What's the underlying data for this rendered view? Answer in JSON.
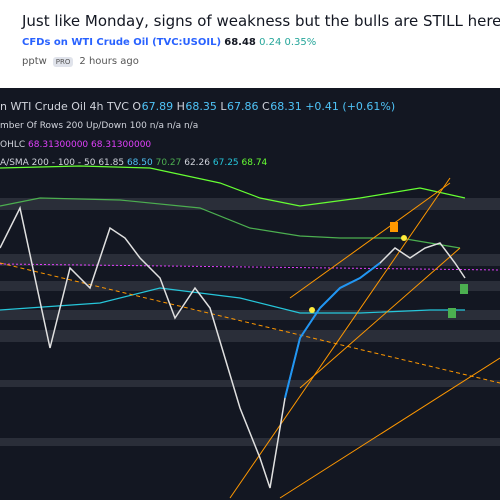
{
  "header": {
    "title": "Just like Monday, signs of weakness but the bulls are STILL here",
    "symbol": "CFDs on WTI Crude Oil (TVC:USOIL)",
    "price": "68.48",
    "change": "0.24",
    "change_pct": "0.35%",
    "author": "pptw",
    "badge": "PRO",
    "time": "2 hours ago"
  },
  "chart": {
    "name": "n WTI Crude Oil",
    "interval": "4h",
    "exchange": "TVC",
    "ohlc": [
      {
        "k": "O",
        "v": "67.89"
      },
      {
        "k": "H",
        "v": "68.35"
      },
      {
        "k": "L",
        "v": "67.86"
      },
      {
        "k": "C",
        "v": "68.31"
      }
    ],
    "delta": "+0.41 (+0.61%)",
    "line2": "mber Of Rows 200 Up/Down 100",
    "line2_na": "n/a n/a n/a",
    "line3": "OHLC",
    "line3_values": [
      "68.31300000",
      "68.31300000"
    ],
    "line4": "A/SMA 200 - 100 - 50",
    "line4_values": [
      {
        "v": "61.85",
        "color": "#d1d4dc"
      },
      {
        "v": "68.50",
        "color": "#4fc3f7"
      },
      {
        "v": "70.27",
        "color": "#4caf50"
      },
      {
        "v": "62.26",
        "color": "#d1d4dc"
      },
      {
        "v": "67.25",
        "color": "#26c6da"
      },
      {
        "v": "68.74",
        "color": "#66ff33"
      }
    ]
  }
}
